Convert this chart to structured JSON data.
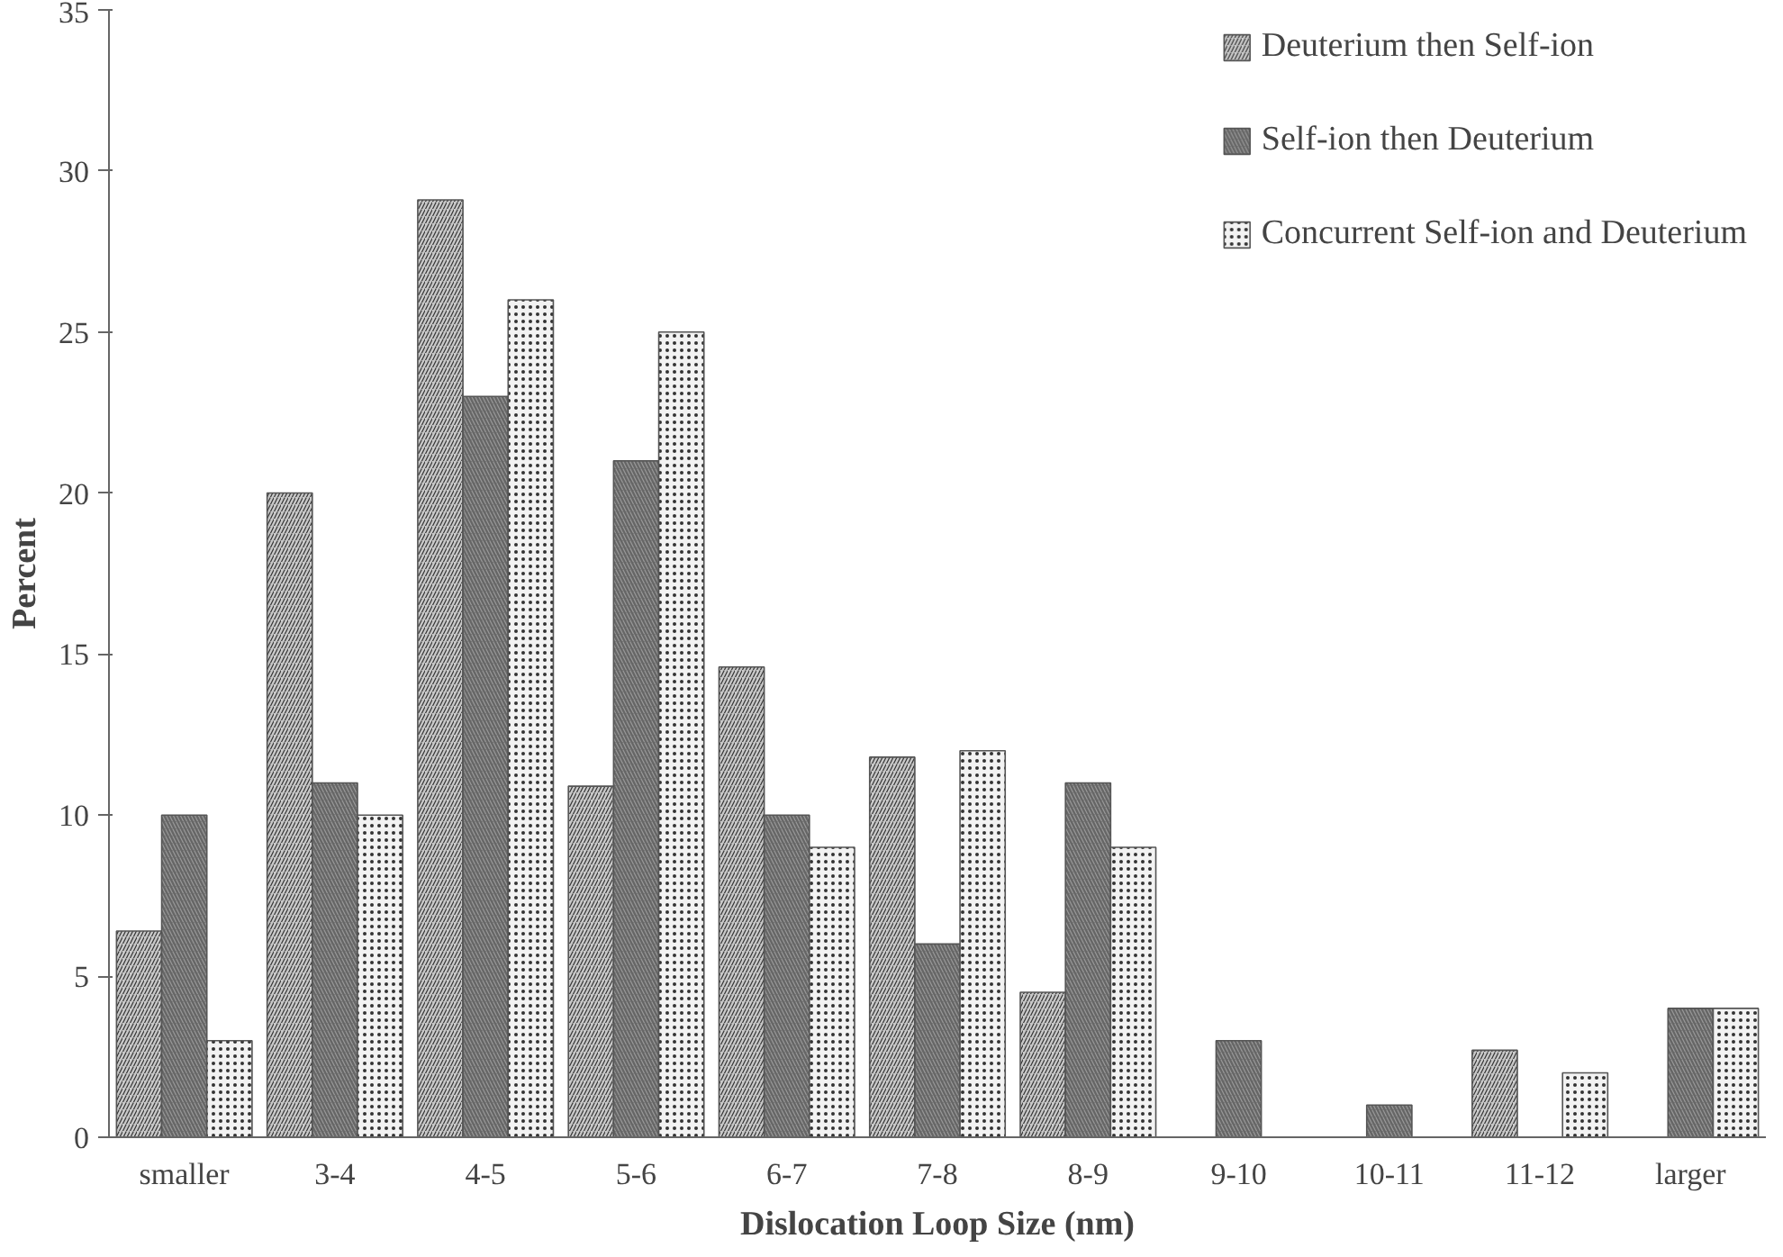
{
  "chart_data": {
    "type": "bar",
    "xlabel": "Dislocation Loop Size (nm)",
    "ylabel": "Percent",
    "categories": [
      "smaller",
      "3-4",
      "4-5",
      "5-6",
      "6-7",
      "7-8",
      "8-9",
      "9-10",
      "10-11",
      "11-12",
      "larger"
    ],
    "series": [
      {
        "name": "Deuterium then Self-ion",
        "color": "#c8c8c8",
        "values": [
          6.4,
          20,
          29.1,
          10.9,
          14.6,
          11.8,
          4.5,
          0,
          0,
          2.7,
          0
        ]
      },
      {
        "name": "Self-ion then Deuterium",
        "color": "#666666",
        "values": [
          10,
          11,
          23,
          21,
          10,
          6,
          11,
          3,
          1,
          0,
          4
        ]
      },
      {
        "name": "Concurrent Self-ion and Deuterium",
        "color": "#f2f2f2",
        "values": [
          3,
          10,
          26,
          25,
          9,
          12,
          9,
          0,
          0,
          2,
          4
        ]
      }
    ],
    "ylim": [
      0,
      35
    ],
    "yticks": [
      0,
      5,
      10,
      15,
      20,
      25,
      30,
      35
    ],
    "grid": false,
    "legend": "top right"
  }
}
